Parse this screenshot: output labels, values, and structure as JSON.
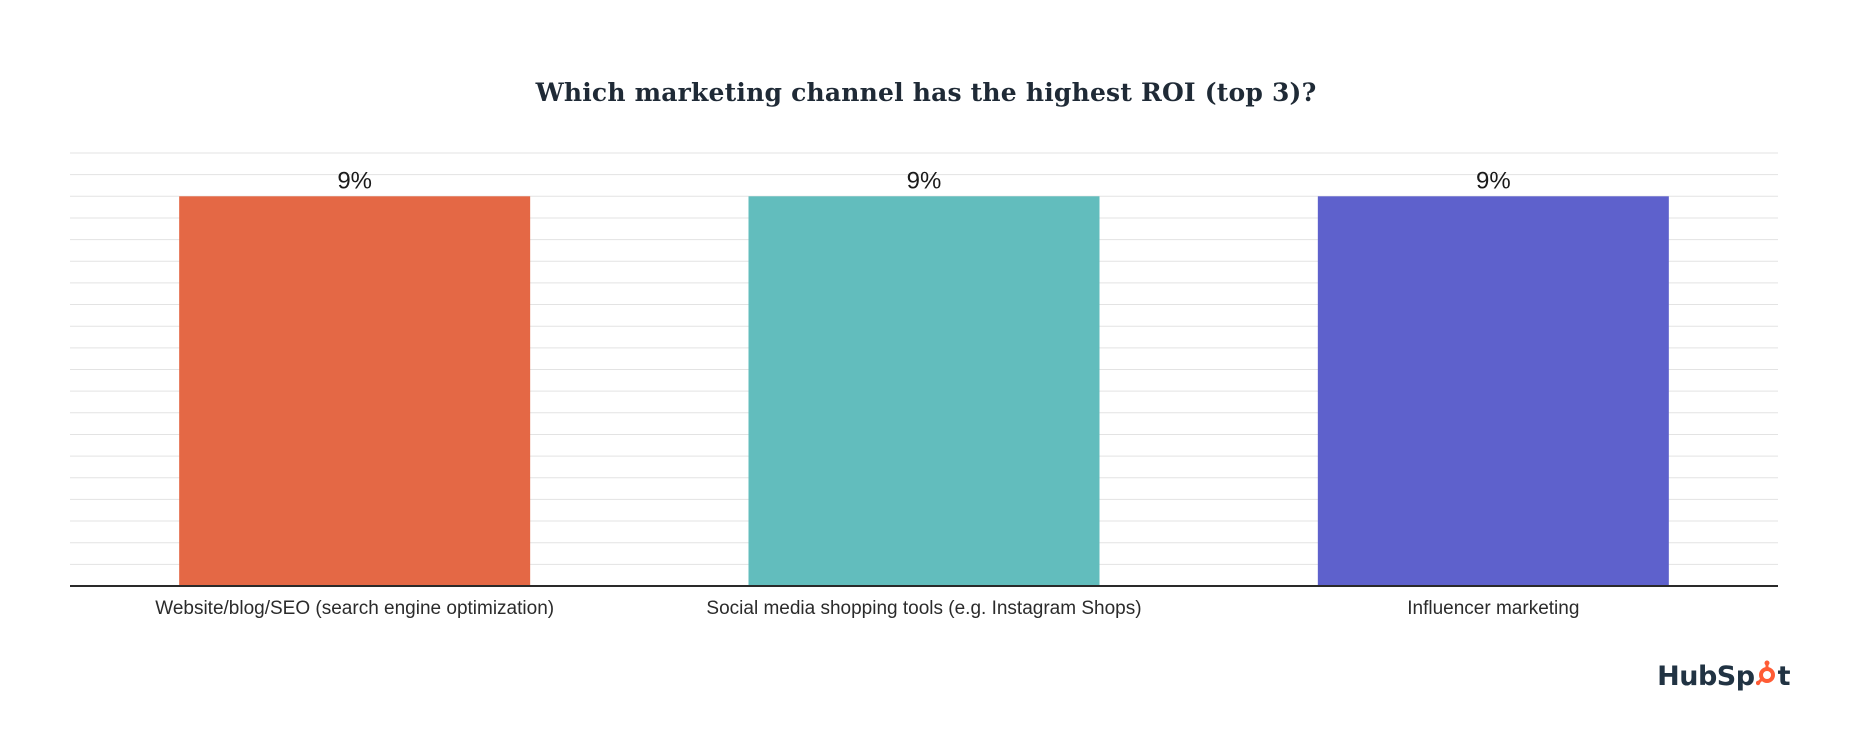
{
  "chart_data": {
    "type": "bar",
    "title": "Which marketing channel has the highest ROI (top 3)?",
    "categories": [
      "Website/blog/SEO (search engine optimization)",
      "Social media shopping tools (e.g. Instagram Shops)",
      "Influencer marketing"
    ],
    "values": [
      9,
      9,
      9
    ],
    "data_labels": [
      "9%",
      "9%",
      "9%"
    ],
    "colors": [
      "#e46845",
      "#62bdbd",
      "#5e61cc"
    ],
    "ylim": [
      0,
      10
    ],
    "y_unit": "%",
    "grid": true,
    "legend": "none",
    "xlabel": "",
    "ylabel": ""
  },
  "branding": {
    "logo_text": "HubSpot",
    "logo_color": "#213343",
    "accent": "#ff5c35"
  }
}
